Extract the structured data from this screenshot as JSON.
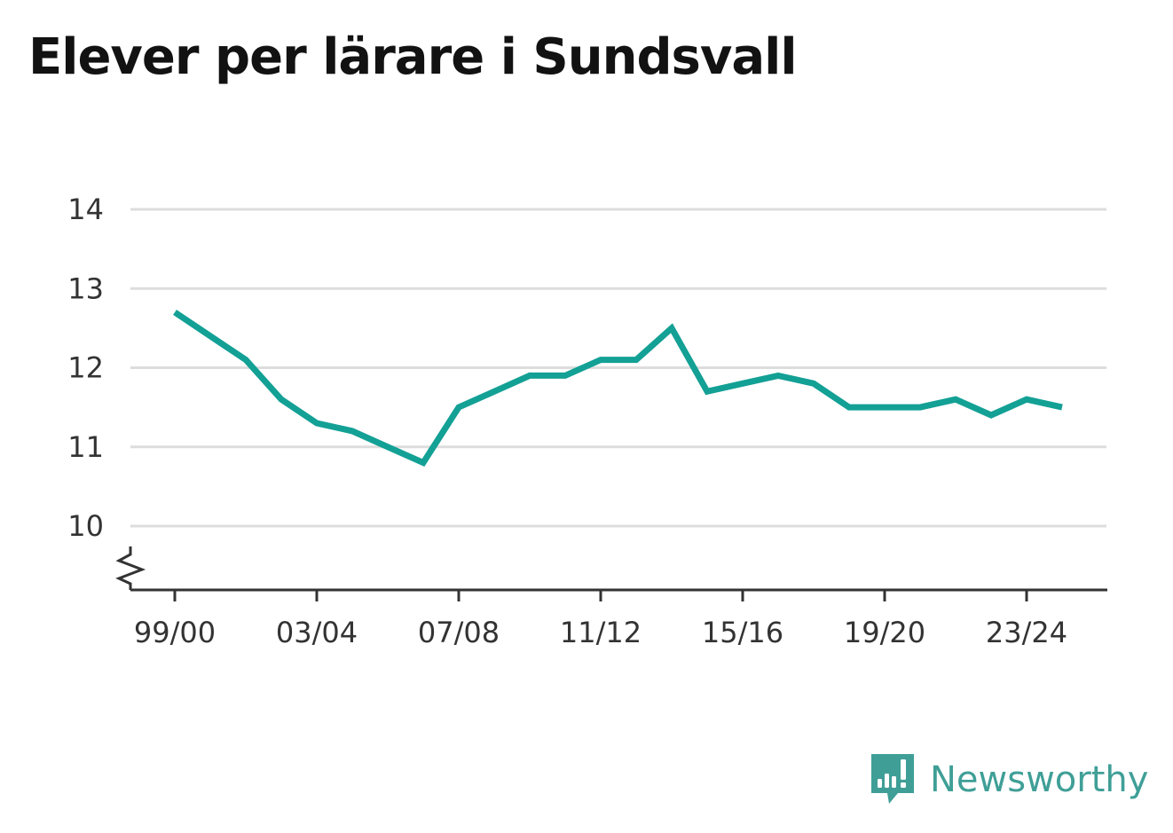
{
  "title": "Elever per lärare i Sundsvall",
  "colors": {
    "line": "#13a095",
    "grid": "#dddddd",
    "axis": "#333333",
    "brand": "#3f9f97"
  },
  "brand": {
    "name": "Newsworthy",
    "icon": "newsworthy-logo-icon"
  },
  "chart_data": {
    "type": "line",
    "title": "Elever per lärare i Sundsvall",
    "xlabel": "",
    "ylabel": "",
    "grid": true,
    "legend": "none",
    "y_axis_break": true,
    "ylim": [
      10,
      14
    ],
    "yticks": [
      10,
      11,
      12,
      13,
      14
    ],
    "x": [
      "99/00",
      "00/01",
      "01/02",
      "02/03",
      "03/04",
      "04/05",
      "05/06",
      "06/07",
      "07/08",
      "08/09",
      "09/10",
      "10/11",
      "11/12",
      "12/13",
      "13/14",
      "14/15",
      "15/16",
      "16/17",
      "17/18",
      "18/19",
      "19/20",
      "20/21",
      "21/22",
      "22/23",
      "23/24",
      "24/25"
    ],
    "xtick_labels": [
      "99/00",
      "03/04",
      "07/08",
      "11/12",
      "15/16",
      "19/20",
      "23/24"
    ],
    "series": [
      {
        "values": [
          12.7,
          12.4,
          12.1,
          11.6,
          11.3,
          11.2,
          11.0,
          10.8,
          11.5,
          11.7,
          11.9,
          11.9,
          12.1,
          12.1,
          12.5,
          11.7,
          11.8,
          11.9,
          11.8,
          11.5,
          11.5,
          11.5,
          11.6,
          11.4,
          11.6,
          11.5
        ]
      }
    ]
  }
}
